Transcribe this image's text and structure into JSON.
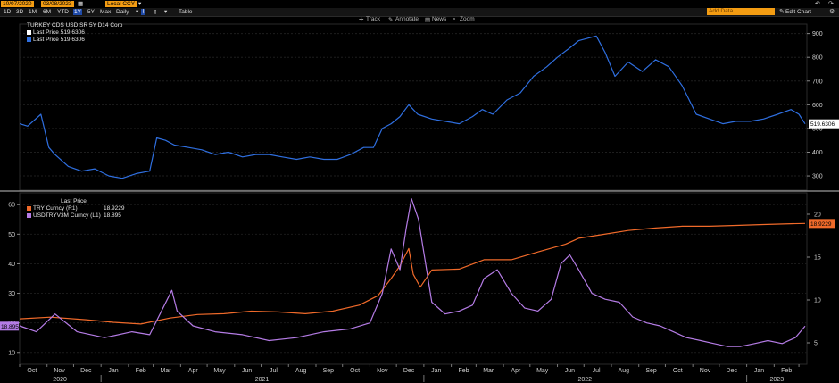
{
  "toolbar": {
    "start_date": "10/07/2020",
    "end_date": "03/08/2023",
    "currency": "Local CCY",
    "frequency": "Daily",
    "periods": [
      "1D",
      "3D",
      "1M",
      "6M",
      "YTD",
      "1Y",
      "5Y",
      "Max"
    ],
    "active_period": "1Y",
    "table_label": "Table",
    "tools": [
      "Track",
      "Annotate",
      "News",
      "Zoom"
    ],
    "add_data_placeholder": "Add Data",
    "edit_chart_label": "Edit Chart"
  },
  "chart_data": [
    {
      "type": "line",
      "title": "TURKEY CDS USD SR 5Y D14 Corp",
      "legend": [
        {
          "label": "Last Price 519.6306",
          "color": "#ffffff"
        },
        {
          "label": "Last Price 519.6306",
          "color": "#2f6fe0"
        }
      ],
      "last_value_label": "519.6306",
      "y_ticks": [
        300,
        400,
        500,
        600,
        700,
        800,
        900
      ],
      "ylim": [
        240,
        940
      ],
      "axis_side": "right",
      "series": [
        {
          "color": "#2f6fe0",
          "x": [
            "2020-10-01",
            "2020-10-10",
            "2020-10-25",
            "2020-11-03",
            "2020-11-10",
            "2020-11-25",
            "2020-12-10",
            "2020-12-25",
            "2021-01-10",
            "2021-01-25",
            "2021-02-10",
            "2021-02-25",
            "2021-03-05",
            "2021-03-15",
            "2021-03-25",
            "2021-04-10",
            "2021-04-25",
            "2021-05-10",
            "2021-05-25",
            "2021-06-10",
            "2021-06-25",
            "2021-07-10",
            "2021-07-25",
            "2021-08-10",
            "2021-08-25",
            "2021-09-10",
            "2021-09-25",
            "2021-10-10",
            "2021-10-25",
            "2021-11-05",
            "2021-11-15",
            "2021-11-25",
            "2021-12-05",
            "2021-12-15",
            "2021-12-25",
            "2022-01-10",
            "2022-01-25",
            "2022-02-10",
            "2022-02-25",
            "2022-03-08",
            "2022-03-20",
            "2022-04-05",
            "2022-04-20",
            "2022-05-05",
            "2022-05-20",
            "2022-06-01",
            "2022-06-15",
            "2022-06-25",
            "2022-07-05",
            "2022-07-15",
            "2022-07-25",
            "2022-08-05",
            "2022-08-20",
            "2022-09-05",
            "2022-09-20",
            "2022-10-05",
            "2022-10-20",
            "2022-11-05",
            "2022-11-20",
            "2022-12-05",
            "2022-12-20",
            "2023-01-05",
            "2023-01-20",
            "2023-02-05",
            "2023-02-20",
            "2023-03-01",
            "2023-03-08"
          ],
          "values": [
            520,
            510,
            560,
            420,
            390,
            340,
            320,
            330,
            300,
            290,
            310,
            320,
            460,
            450,
            430,
            420,
            410,
            390,
            400,
            380,
            390,
            390,
            380,
            370,
            380,
            370,
            370,
            390,
            420,
            420,
            500,
            520,
            550,
            600,
            560,
            540,
            530,
            520,
            550,
            580,
            560,
            620,
            650,
            720,
            760,
            800,
            840,
            870,
            880,
            890,
            820,
            720,
            780,
            740,
            790,
            760,
            680,
            560,
            540,
            520,
            530,
            530,
            540,
            560,
            580,
            560,
            519.6306
          ]
        }
      ]
    },
    {
      "type": "line",
      "legend_title": "Last Price",
      "legend": [
        {
          "label": "TRY Curncy (R1)",
          "value": "18.9229",
          "color": "#f06a2a"
        },
        {
          "label": "USDTRYV3M Curncy (L1)",
          "value": "18.895",
          "color": "#b57ce6"
        }
      ],
      "left_last_label": "18.895",
      "right_last_label": "18.9229",
      "left_axis_ticks": [
        10,
        20,
        30,
        40,
        50,
        60
      ],
      "left_ylim": [
        6,
        64
      ],
      "right_axis_ticks": [
        5,
        10,
        15,
        20
      ],
      "right_ylim": [
        2.5,
        22.5
      ],
      "x_month_ticks": [
        "Oct",
        "Nov",
        "Dec",
        "Jan",
        "Feb",
        "Mar",
        "Apr",
        "May",
        "Jun",
        "Jul",
        "Aug",
        "Sep",
        "Oct",
        "Nov",
        "Dec",
        "Jan",
        "Feb",
        "Mar",
        "Apr",
        "May",
        "Jun",
        "Jul",
        "Aug",
        "Sep",
        "Oct",
        "Nov",
        "Dec",
        "Jan",
        "Feb",
        "Mar"
      ],
      "x_year_ticks": [
        "2020",
        "2021",
        "2022",
        "2023"
      ],
      "x_range": [
        "2020-10-01",
        "2023-03-10"
      ],
      "series": [
        {
          "name": "TRY Curncy (R1)",
          "axis": "right",
          "color": "#f06a2a",
          "x": [
            "2020-10-01",
            "2020-11-05",
            "2020-12-15",
            "2021-01-15",
            "2021-02-15",
            "2021-03-20",
            "2021-04-20",
            "2021-05-20",
            "2021-06-20",
            "2021-07-20",
            "2021-08-20",
            "2021-09-20",
            "2021-10-20",
            "2021-11-10",
            "2021-11-25",
            "2021-12-05",
            "2021-12-15",
            "2021-12-20",
            "2021-12-28",
            "2022-01-10",
            "2022-02-10",
            "2022-03-10",
            "2022-04-10",
            "2022-05-10",
            "2022-06-10",
            "2022-06-25",
            "2022-07-20",
            "2022-08-20",
            "2022-09-20",
            "2022-10-20",
            "2022-11-20",
            "2022-12-20",
            "2023-01-20",
            "2023-02-20",
            "2023-03-08"
          ],
          "values": [
            7.8,
            8.0,
            7.7,
            7.4,
            7.2,
            7.9,
            8.3,
            8.4,
            8.7,
            8.6,
            8.4,
            8.7,
            9.4,
            10.5,
            12.5,
            14.0,
            16.0,
            13.0,
            11.5,
            13.5,
            13.6,
            14.7,
            14.7,
            15.6,
            16.5,
            17.2,
            17.6,
            18.1,
            18.4,
            18.6,
            18.6,
            18.7,
            18.8,
            18.9,
            18.9229
          ]
        },
        {
          "name": "USDTRYV3M Curncy (L1)",
          "axis": "left",
          "color": "#b57ce6",
          "x": [
            "2020-10-01",
            "2020-10-20",
            "2020-11-10",
            "2020-12-05",
            "2021-01-05",
            "2021-02-05",
            "2021-02-25",
            "2021-03-22",
            "2021-03-28",
            "2021-04-15",
            "2021-05-10",
            "2021-06-10",
            "2021-07-10",
            "2021-08-10",
            "2021-09-10",
            "2021-10-10",
            "2021-11-01",
            "2021-11-15",
            "2021-11-25",
            "2021-12-05",
            "2021-12-12",
            "2021-12-18",
            "2021-12-26",
            "2022-01-10",
            "2022-01-25",
            "2022-02-10",
            "2022-02-25",
            "2022-03-10",
            "2022-03-25",
            "2022-04-10",
            "2022-04-25",
            "2022-05-10",
            "2022-05-25",
            "2022-06-05",
            "2022-06-15",
            "2022-06-25",
            "2022-07-10",
            "2022-07-25",
            "2022-08-10",
            "2022-08-25",
            "2022-09-10",
            "2022-09-25",
            "2022-10-10",
            "2022-10-25",
            "2022-11-10",
            "2022-11-25",
            "2022-12-10",
            "2022-12-25",
            "2023-01-10",
            "2023-01-25",
            "2023-02-10",
            "2023-02-25",
            "2023-03-08"
          ],
          "values": [
            19,
            17,
            23,
            17,
            15,
            17,
            16,
            31,
            24,
            19,
            17,
            16,
            14,
            15,
            17,
            18,
            20,
            30,
            45,
            38,
            52,
            62,
            55,
            27,
            23,
            24,
            26,
            35,
            38,
            30,
            25,
            24,
            28,
            40,
            43,
            38,
            30,
            28,
            27,
            22,
            20,
            19,
            17,
            15,
            14,
            13,
            12,
            12,
            13,
            14,
            13,
            15,
            18.895
          ]
        }
      ]
    }
  ]
}
